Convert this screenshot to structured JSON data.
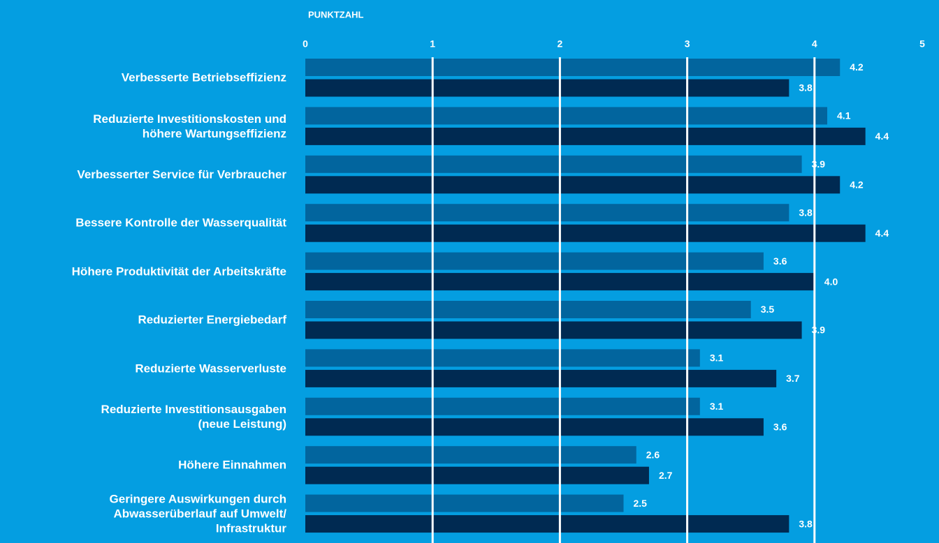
{
  "chart_data": {
    "type": "bar",
    "orientation": "horizontal",
    "axis_label": "PUNKTZAHL",
    "categories": [
      "Verbesserte Betriebseffizienz",
      "Reduzierte Investitionskosten und\nhöhere Wartungseffizienz",
      "Verbesserter Service für Verbraucher",
      "Bessere Kontrolle der Wasserqualität",
      "Höhere Produktivität der Arbeitskräfte",
      "Reduzierter Energiebedarf",
      "Reduzierte Wasserverluste",
      "Reduzierte Investitionsausgaben\n(neue Leistung)",
      "Höhere Einnahmen",
      "Geringere Auswirkungen durch\nAbwasserüberlauf auf Umwelt/\nInfrastruktur"
    ],
    "series": [
      {
        "color": "#02659e",
        "values": [
          4.2,
          4.1,
          3.9,
          3.8,
          3.6,
          3.5,
          3.1,
          3.1,
          2.6,
          2.5
        ],
        "value_labels": [
          "4.2",
          "4.1",
          "3.9",
          "3.8",
          "3.6",
          "3.5",
          "3.1",
          "3.1",
          "2.6",
          "2.5"
        ]
      },
      {
        "color": "#002a52",
        "values": [
          3.8,
          4.4,
          4.2,
          4.4,
          4.0,
          3.9,
          3.7,
          3.6,
          2.7,
          3.8
        ],
        "value_labels": [
          "3.8",
          "4.4",
          "4.2",
          "4.4",
          "4.0",
          "3.9",
          "3.7",
          "3.6",
          "2.7",
          "3.8"
        ]
      }
    ],
    "xlim": [
      0,
      5
    ],
    "xticks": [
      0,
      1,
      2,
      3,
      4,
      5
    ],
    "grid": true,
    "background": "#049ee1"
  }
}
